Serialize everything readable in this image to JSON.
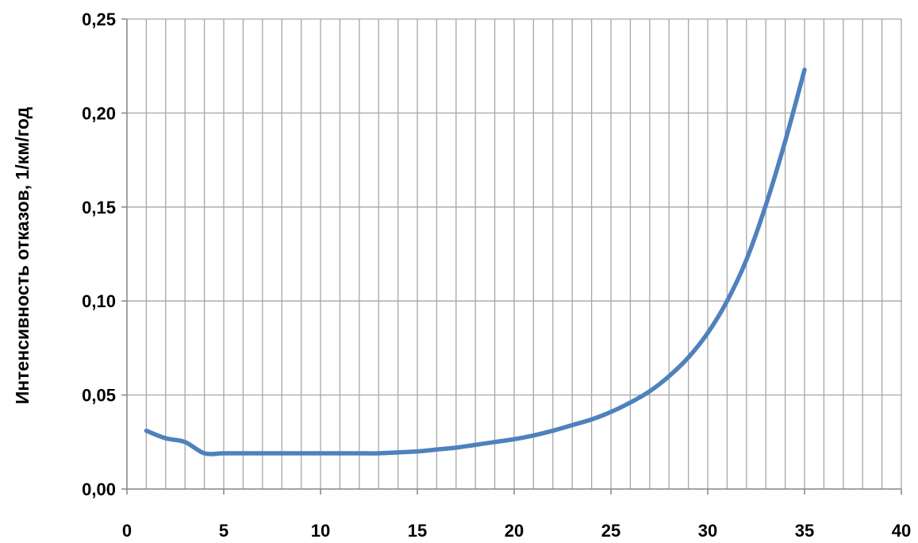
{
  "chart_data": {
    "type": "line",
    "title": "",
    "xlabel": "",
    "ylabel": "Интенсивность отказов, 1/км/год",
    "xlim": [
      0,
      40
    ],
    "ylim": [
      0,
      0.25
    ],
    "x_major_ticks": [
      0,
      5,
      10,
      15,
      20,
      25,
      30,
      35,
      40
    ],
    "x_tick_labels": [
      "0",
      "5",
      "10",
      "15",
      "20",
      "25",
      "30",
      "35",
      "40"
    ],
    "x_minor_step": 1,
    "y_ticks": [
      0,
      0.05,
      0.1,
      0.15,
      0.2,
      0.25
    ],
    "y_tick_labels": [
      "0,00",
      "0,05",
      "0,10",
      "0,15",
      "0,20",
      "0,25"
    ],
    "grid": true,
    "legend": "none",
    "series": [
      {
        "color": "#4f81bd",
        "x": [
          1,
          2,
          3,
          4,
          5,
          6,
          7,
          8,
          9,
          10,
          11,
          12,
          13,
          14,
          15,
          16,
          17,
          18,
          19,
          20,
          21,
          22,
          23,
          24,
          25,
          26,
          27,
          28,
          29,
          30,
          31,
          32,
          33,
          34,
          35
        ],
        "values": [
          0.031,
          0.027,
          0.025,
          0.019,
          0.019,
          0.019,
          0.019,
          0.019,
          0.019,
          0.019,
          0.019,
          0.019,
          0.019,
          0.0195,
          0.02,
          0.021,
          0.022,
          0.0235,
          0.025,
          0.0265,
          0.0285,
          0.031,
          0.034,
          0.037,
          0.041,
          0.046,
          0.052,
          0.06,
          0.07,
          0.083,
          0.1,
          0.122,
          0.151,
          0.185,
          0.223
        ]
      }
    ]
  }
}
